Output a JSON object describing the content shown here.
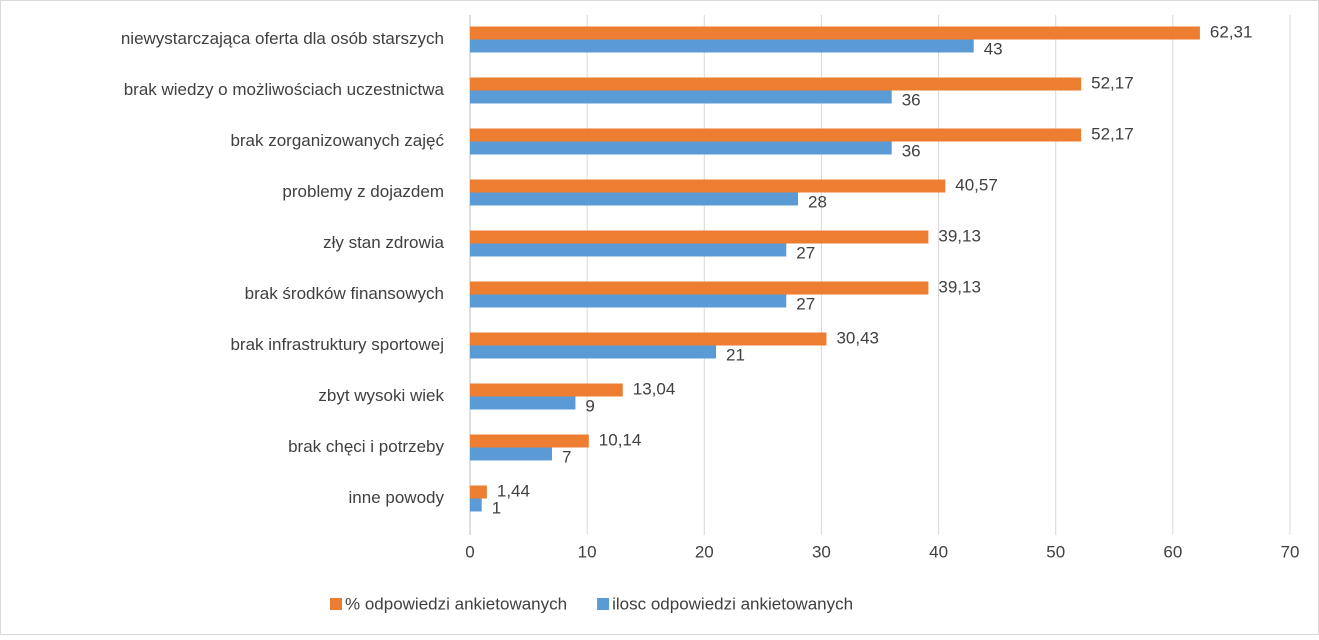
{
  "chart_data": {
    "type": "barh",
    "categories": [
      "niewystarczająca oferta dla osób starszych",
      "brak wiedzy o możliwościach uczestnictwa",
      "brak zorganizowanych zajęć",
      "problemy z dojazdem",
      "zły stan zdrowia",
      "brak środków finansowych",
      "brak infrastruktury sportowej",
      "zbyt wysoki wiek",
      "brak chęci i potrzeby",
      "inne powody"
    ],
    "series": [
      {
        "name": "% odpowiedzi ankietowanych",
        "color": "#ed7d31",
        "values": [
          62.31,
          52.17,
          52.17,
          40.57,
          39.13,
          39.13,
          30.43,
          13.04,
          10.14,
          1.44
        ],
        "value_labels": [
          "62,31",
          "52,17",
          "52,17",
          "40,57",
          "39,13",
          "39,13",
          "30,43",
          "13,04",
          "10,14",
          "1,44"
        ]
      },
      {
        "name": "ilosc odpowiedzi ankietowanych",
        "color": "#5b9bd5",
        "values": [
          43,
          36,
          36,
          28,
          27,
          27,
          21,
          9,
          7,
          1
        ]
      }
    ],
    "xlim": [
      0,
      70
    ],
    "xticks": [
      0,
      10,
      20,
      30,
      40,
      50,
      60,
      70
    ],
    "grid": true,
    "legend": "bottom"
  }
}
